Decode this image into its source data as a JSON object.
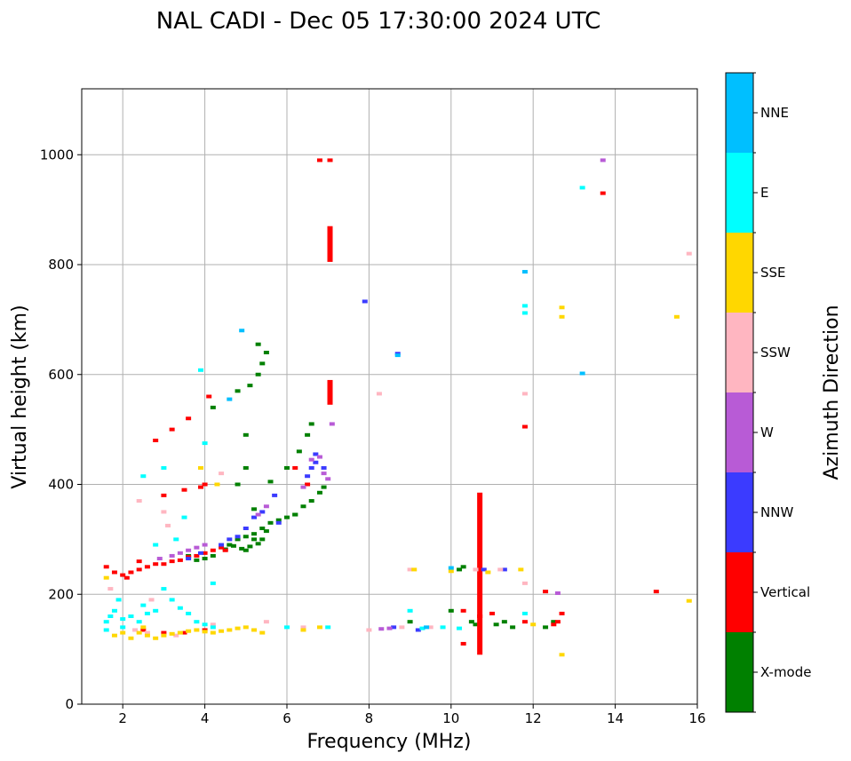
{
  "chart_data": {
    "type": "scatter",
    "title": "NAL CADI - Dec 05 17:30:00 2024 UTC",
    "xlabel": "Frequency (MHz)",
    "ylabel": "Virtual height (km)",
    "xlim": [
      1,
      16
    ],
    "ylim": [
      0,
      1120
    ],
    "x_ticks": [
      2,
      4,
      6,
      8,
      10,
      12,
      14,
      16
    ],
    "y_ticks": [
      0,
      200,
      400,
      600,
      800,
      1000
    ],
    "grid": true,
    "colorbar": {
      "label": "Azimuth Direction",
      "position": "right",
      "categories": [
        "X-mode",
        "Vertical",
        "NNW",
        "W",
        "SSW",
        "SSE",
        "E",
        "NNE"
      ],
      "colors": [
        "#008000",
        "#ff0000",
        "#3b3bff",
        "#b85bd6",
        "#ffb6c1",
        "#ffd700",
        "#00ffff",
        "#00bfff"
      ]
    },
    "series": [
      {
        "name": "X-mode",
        "points": [
          [
            4.6,
            290
          ],
          [
            4.8,
            300
          ],
          [
            5.0,
            305
          ],
          [
            5.2,
            310
          ],
          [
            5.4,
            300
          ],
          [
            5.3,
            292
          ],
          [
            5.1,
            287
          ],
          [
            4.9,
            283
          ],
          [
            4.5,
            282
          ],
          [
            4.7,
            288
          ],
          [
            5.5,
            315
          ],
          [
            5.6,
            330
          ],
          [
            5.8,
            335
          ],
          [
            6.0,
            340
          ],
          [
            6.2,
            345
          ],
          [
            6.4,
            360
          ],
          [
            6.6,
            370
          ],
          [
            6.8,
            385
          ],
          [
            6.9,
            395
          ],
          [
            4.2,
            270
          ],
          [
            4.0,
            265
          ],
          [
            3.8,
            262
          ],
          [
            3.6,
            270
          ],
          [
            5.0,
            280
          ],
          [
            5.2,
            300
          ],
          [
            5.4,
            320
          ],
          [
            5.2,
            355
          ],
          [
            5.0,
            490
          ],
          [
            5.1,
            580
          ],
          [
            5.3,
            600
          ],
          [
            5.4,
            620
          ],
          [
            5.5,
            640
          ],
          [
            5.3,
            655
          ],
          [
            4.8,
            570
          ],
          [
            6.0,
            430
          ],
          [
            6.3,
            460
          ],
          [
            6.5,
            490
          ],
          [
            6.6,
            510
          ],
          [
            5.6,
            405
          ],
          [
            4.8,
            400
          ],
          [
            5.0,
            430
          ],
          [
            4.2,
            540
          ],
          [
            10.3,
            250
          ],
          [
            10.2,
            245
          ],
          [
            10.5,
            150
          ],
          [
            11.3,
            150
          ],
          [
            11.1,
            145
          ],
          [
            12.3,
            140
          ],
          [
            12.5,
            150
          ],
          [
            9.0,
            150
          ],
          [
            10.0,
            170
          ],
          [
            10.6,
            145
          ],
          [
            11.5,
            140
          ],
          [
            6.2,
            345
          ]
        ]
      },
      {
        "name": "Vertical",
        "points": [
          [
            1.6,
            250
          ],
          [
            1.8,
            240
          ],
          [
            2.0,
            235
          ],
          [
            2.2,
            240
          ],
          [
            2.4,
            245
          ],
          [
            2.6,
            250
          ],
          [
            2.8,
            255
          ],
          [
            3.0,
            255
          ],
          [
            3.2,
            260
          ],
          [
            3.4,
            262
          ],
          [
            3.6,
            268
          ],
          [
            3.8,
            270
          ],
          [
            4.0,
            275
          ],
          [
            4.2,
            280
          ],
          [
            4.4,
            285
          ],
          [
            2.5,
            135
          ],
          [
            3.0,
            130
          ],
          [
            3.5,
            130
          ],
          [
            4.0,
            135
          ],
          [
            3.0,
            380
          ],
          [
            3.5,
            390
          ],
          [
            4.0,
            400
          ],
          [
            3.2,
            500
          ],
          [
            3.6,
            520
          ],
          [
            4.1,
            560
          ],
          [
            2.8,
            480
          ],
          [
            6.2,
            430
          ],
          [
            6.5,
            400
          ],
          [
            6.8,
            990
          ],
          [
            7.05,
            990
          ],
          [
            12.6,
            150
          ],
          [
            12.5,
            145
          ],
          [
            12.7,
            165
          ],
          [
            12.3,
            205
          ],
          [
            10.7,
            160
          ],
          [
            11.0,
            165
          ],
          [
            10.3,
            170
          ],
          [
            11.8,
            505
          ],
          [
            11.8,
            150
          ],
          [
            13.7,
            930
          ],
          [
            15.0,
            205
          ],
          [
            4.5,
            280
          ],
          [
            2.1,
            230
          ],
          [
            3.9,
            395
          ],
          [
            2.4,
            260
          ],
          [
            10.3,
            110
          ]
        ]
      },
      {
        "name": "Vertical-bars",
        "bars": [
          [
            7.05,
            805,
            870
          ],
          [
            7.05,
            545,
            590
          ],
          [
            10.7,
            90,
            385
          ]
        ]
      },
      {
        "name": "NNW",
        "points": [
          [
            5.0,
            320
          ],
          [
            5.2,
            340
          ],
          [
            5.4,
            350
          ],
          [
            6.5,
            415
          ],
          [
            6.6,
            430
          ],
          [
            6.7,
            440
          ],
          [
            4.6,
            300
          ],
          [
            4.4,
            290
          ],
          [
            3.9,
            275
          ],
          [
            3.6,
            265
          ],
          [
            5.7,
            380
          ],
          [
            10.8,
            245
          ],
          [
            11.3,
            245
          ],
          [
            9.2,
            135
          ],
          [
            8.6,
            140
          ],
          [
            8.7,
            638
          ],
          [
            7.9,
            733
          ],
          [
            6.9,
            430
          ],
          [
            6.7,
            455
          ],
          [
            5.8,
            330
          ],
          [
            4.8,
            305
          ]
        ]
      },
      {
        "name": "W",
        "points": [
          [
            3.2,
            270
          ],
          [
            3.4,
            275
          ],
          [
            3.6,
            280
          ],
          [
            3.8,
            285
          ],
          [
            6.8,
            450
          ],
          [
            6.6,
            445
          ],
          [
            6.9,
            420
          ],
          [
            7.0,
            410
          ],
          [
            8.5,
            138
          ],
          [
            8.3,
            137
          ],
          [
            12.6,
            202
          ],
          [
            13.7,
            990
          ],
          [
            7.1,
            510
          ],
          [
            5.3,
            345
          ],
          [
            2.9,
            265
          ],
          [
            4.0,
            290
          ],
          [
            5.5,
            360
          ],
          [
            6.4,
            395
          ]
        ]
      },
      {
        "name": "SSW",
        "points": [
          [
            2.3,
            135
          ],
          [
            2.6,
            130
          ],
          [
            3.3,
            125
          ],
          [
            1.7,
            210
          ],
          [
            2.4,
            370
          ],
          [
            3.0,
            350
          ],
          [
            5.5,
            150
          ],
          [
            4.4,
            420
          ],
          [
            8.0,
            135
          ],
          [
            8.8,
            140
          ],
          [
            9.0,
            245
          ],
          [
            10.6,
            245
          ],
          [
            11.2,
            245
          ],
          [
            11.8,
            565
          ],
          [
            11.8,
            220
          ],
          [
            15.8,
            820
          ],
          [
            8.25,
            565
          ],
          [
            2.7,
            190
          ],
          [
            4.2,
            145
          ],
          [
            6.4,
            140
          ],
          [
            9.5,
            140
          ],
          [
            3.1,
            325
          ]
        ]
      },
      {
        "name": "SSE",
        "points": [
          [
            1.8,
            125
          ],
          [
            2.0,
            130
          ],
          [
            2.2,
            120
          ],
          [
            2.4,
            130
          ],
          [
            2.6,
            125
          ],
          [
            2.8,
            120
          ],
          [
            3.0,
            125
          ],
          [
            3.2,
            128
          ],
          [
            3.4,
            130
          ],
          [
            3.6,
            133
          ],
          [
            3.8,
            135
          ],
          [
            4.0,
            132
          ],
          [
            4.2,
            130
          ],
          [
            4.4,
            133
          ],
          [
            4.6,
            135
          ],
          [
            4.8,
            138
          ],
          [
            5.0,
            140
          ],
          [
            5.2,
            135
          ],
          [
            5.4,
            130
          ],
          [
            6.4,
            135
          ],
          [
            6.8,
            140
          ],
          [
            9.1,
            245
          ],
          [
            10.0,
            242
          ],
          [
            11.7,
            245
          ],
          [
            12.7,
            722
          ],
          [
            12.7,
            705
          ],
          [
            12.7,
            90
          ],
          [
            15.5,
            705
          ],
          [
            15.8,
            188
          ],
          [
            3.9,
            430
          ],
          [
            4.3,
            400
          ],
          [
            10.9,
            240
          ],
          [
            12.0,
            145
          ],
          [
            1.6,
            230
          ],
          [
            2.5,
            140
          ]
        ]
      },
      {
        "name": "E",
        "points": [
          [
            1.6,
            150
          ],
          [
            1.7,
            160
          ],
          [
            1.8,
            170
          ],
          [
            2.0,
            155
          ],
          [
            2.2,
            160
          ],
          [
            2.4,
            150
          ],
          [
            2.6,
            165
          ],
          [
            2.8,
            170
          ],
          [
            3.0,
            210
          ],
          [
            3.2,
            190
          ],
          [
            3.4,
            175
          ],
          [
            3.6,
            165
          ],
          [
            3.8,
            150
          ],
          [
            4.0,
            145
          ],
          [
            4.2,
            140
          ],
          [
            1.6,
            135
          ],
          [
            2.0,
            140
          ],
          [
            2.5,
            180
          ],
          [
            3.0,
            430
          ],
          [
            2.5,
            415
          ],
          [
            4.0,
            475
          ],
          [
            3.9,
            608
          ],
          [
            4.2,
            220
          ],
          [
            6.0,
            140
          ],
          [
            7.0,
            140
          ],
          [
            9.0,
            170
          ],
          [
            9.3,
            138
          ],
          [
            9.8,
            140
          ],
          [
            10.2,
            138
          ],
          [
            11.8,
            712
          ],
          [
            11.8,
            725
          ],
          [
            13.2,
            940
          ],
          [
            11.8,
            165
          ],
          [
            3.3,
            300
          ],
          [
            2.8,
            290
          ],
          [
            1.9,
            190
          ],
          [
            3.5,
            340
          ],
          [
            2.2,
            160
          ]
        ]
      },
      {
        "name": "NNE",
        "points": [
          [
            11.8,
            787
          ],
          [
            13.2,
            602
          ],
          [
            8.7,
            635
          ],
          [
            4.9,
            680
          ],
          [
            4.6,
            555
          ],
          [
            10.0,
            248
          ],
          [
            9.4,
            140
          ]
        ]
      }
    ]
  }
}
